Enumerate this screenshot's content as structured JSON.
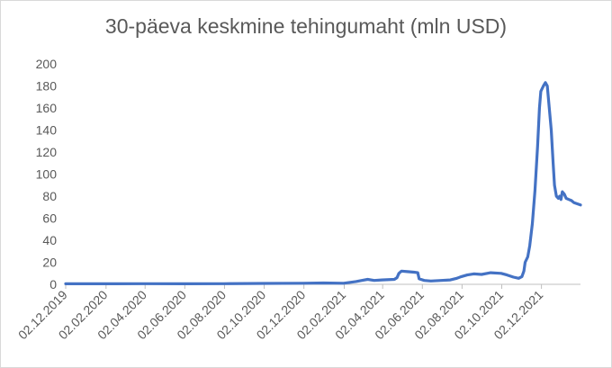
{
  "chart_data": {
    "type": "line",
    "title": "30-päeva keskmine tehingumaht (mln USD)",
    "xlabel": "",
    "ylabel": "",
    "ylim": [
      0,
      200
    ],
    "y_ticks": [
      0,
      20,
      40,
      60,
      80,
      100,
      120,
      140,
      160,
      180,
      200
    ],
    "x_tick_labels": [
      "02.12.2019",
      "02.02.2020",
      "02.04.2020",
      "02.06.2020",
      "02.08.2020",
      "02.10.2020",
      "02.12.2020",
      "02.02.2021",
      "02.04.2021",
      "02.06.2021",
      "02.08.2021",
      "02.10.2021",
      "02.12.2021"
    ],
    "x_range": [
      "2019-12-02",
      "2022-01-31"
    ],
    "grid": false,
    "legend": "none",
    "series_color": "#4472c4",
    "series": [
      {
        "points": [
          [
            "2019-12-02",
            0.5
          ],
          [
            "2020-02-01",
            0.5
          ],
          [
            "2020-04-01",
            0.6
          ],
          [
            "2020-06-01",
            0.5
          ],
          [
            "2020-08-01",
            0.6
          ],
          [
            "2020-10-01",
            0.8
          ],
          [
            "2020-12-01",
            1.0
          ],
          [
            "2021-01-01",
            1.2
          ],
          [
            "2021-02-01",
            1.0
          ],
          [
            "2021-02-20",
            2.5
          ],
          [
            "2021-03-01",
            3.5
          ],
          [
            "2021-03-10",
            4.5
          ],
          [
            "2021-03-20",
            3.5
          ],
          [
            "2021-04-01",
            4.0
          ],
          [
            "2021-04-20",
            4.5
          ],
          [
            "2021-04-24",
            6.0
          ],
          [
            "2021-04-27",
            10.0
          ],
          [
            "2021-05-01",
            12.0
          ],
          [
            "2021-05-10",
            11.5
          ],
          [
            "2021-05-20",
            11.0
          ],
          [
            "2021-05-26",
            10.5
          ],
          [
            "2021-05-28",
            5.0
          ],
          [
            "2021-06-05",
            3.5
          ],
          [
            "2021-06-15",
            3.0
          ],
          [
            "2021-07-01",
            3.5
          ],
          [
            "2021-07-15",
            4.0
          ],
          [
            "2021-07-25",
            5.5
          ],
          [
            "2021-08-01",
            7.0
          ],
          [
            "2021-08-10",
            8.5
          ],
          [
            "2021-08-20",
            9.5
          ],
          [
            "2021-09-01",
            9.0
          ],
          [
            "2021-09-15",
            10.5
          ],
          [
            "2021-10-01",
            10.0
          ],
          [
            "2021-10-10",
            8.5
          ],
          [
            "2021-10-20",
            6.5
          ],
          [
            "2021-10-28",
            5.5
          ],
          [
            "2021-11-02",
            7.0
          ],
          [
            "2021-11-05",
            12.0
          ],
          [
            "2021-11-07",
            20.0
          ],
          [
            "2021-11-11",
            25.0
          ],
          [
            "2021-11-14",
            35.0
          ],
          [
            "2021-11-18",
            55.0
          ],
          [
            "2021-11-22",
            85.0
          ],
          [
            "2021-11-26",
            125.0
          ],
          [
            "2021-11-29",
            160.0
          ],
          [
            "2021-12-01",
            175.0
          ],
          [
            "2021-12-05",
            180.0
          ],
          [
            "2021-12-08",
            183.0
          ],
          [
            "2021-12-11",
            180.0
          ],
          [
            "2021-12-14",
            160.0
          ],
          [
            "2021-12-17",
            140.0
          ],
          [
            "2021-12-20",
            110.0
          ],
          [
            "2021-12-22",
            90.0
          ],
          [
            "2021-12-25",
            80.0
          ],
          [
            "2021-12-28",
            78.0
          ],
          [
            "2021-12-30",
            80.0
          ],
          [
            "2022-01-01",
            77.0
          ],
          [
            "2022-01-03",
            84.0
          ],
          [
            "2022-01-06",
            82.0
          ],
          [
            "2022-01-09",
            78.0
          ],
          [
            "2022-01-13",
            77.0
          ],
          [
            "2022-01-17",
            76.0
          ],
          [
            "2022-01-21",
            74.0
          ],
          [
            "2022-01-31",
            72.0
          ]
        ]
      }
    ]
  }
}
